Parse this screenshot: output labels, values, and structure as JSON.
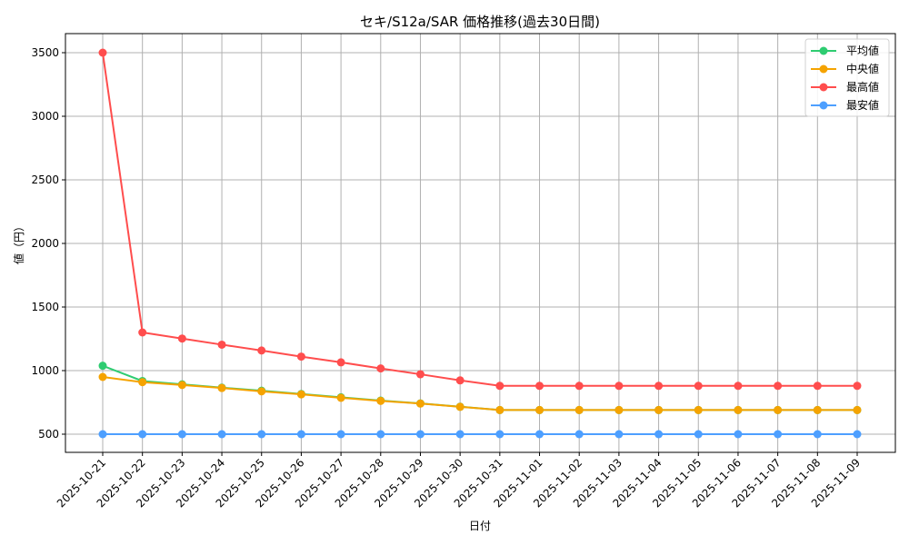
{
  "chart_data": {
    "type": "line",
    "title": "セキ/S12a/SAR 価格推移(過去30日間)",
    "xlabel": "日付",
    "ylabel": "値（円）",
    "ylim": [
      370,
      3650
    ],
    "yticks": [
      500,
      1000,
      1500,
      2000,
      2500,
      3000,
      3500
    ],
    "grid": true,
    "legend_position": "upper right",
    "x": [
      "2025-10-21",
      "2025-10-22",
      "2025-10-23",
      "2025-10-24",
      "2025-10-25",
      "2025-10-26",
      "2025-10-27",
      "2025-10-28",
      "2025-10-29",
      "2025-10-30",
      "2025-10-31",
      "2025-11-01",
      "2025-11-02",
      "2025-11-03",
      "2025-11-04",
      "2025-11-05",
      "2025-11-06",
      "2025-11-07",
      "2025-11-08",
      "2025-11-09"
    ],
    "series": [
      {
        "name": "平均値",
        "color": "#2ecc71",
        "values": [
          1038,
          918,
          892,
          866,
          842,
          816,
          790,
          764,
          742,
          716,
          690,
          690,
          690,
          690,
          690,
          690,
          690,
          690,
          690,
          690
        ]
      },
      {
        "name": "中央値",
        "color": "#f5a300",
        "values": [
          950,
          909,
          887,
          863,
          837,
          813,
          786,
          762,
          741,
          715,
          690,
          690,
          690,
          690,
          690,
          690,
          690,
          690,
          690,
          690
        ]
      },
      {
        "name": "最高値",
        "color": "#ff4d4d",
        "values": [
          3500,
          1300,
          1252,
          1204,
          1158,
          1110,
          1065,
          1017,
          971,
          923,
          880,
          880,
          880,
          880,
          880,
          880,
          880,
          880,
          880,
          880
        ]
      },
      {
        "name": "最安値",
        "color": "#4d9fff",
        "values": [
          500,
          500,
          500,
          500,
          500,
          500,
          500,
          500,
          500,
          500,
          500,
          500,
          500,
          500,
          500,
          500,
          500,
          500,
          500,
          500
        ]
      }
    ]
  }
}
